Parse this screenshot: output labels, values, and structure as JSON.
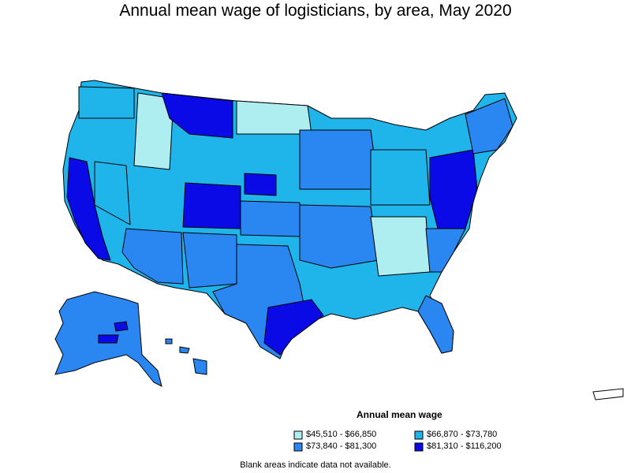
{
  "title": "Annual mean wage of logisticians, by area, May 2020",
  "legend": {
    "title": "Annual mean wage",
    "items": [
      {
        "label": "$45,510 - $66,850",
        "color": "#aeeef0"
      },
      {
        "label": "$66,870 - $73,780",
        "color": "#1fb4ea"
      },
      {
        "label": "$73,840 - $81,300",
        "color": "#2a86f0"
      },
      {
        "label": "$81,310 - $116,200",
        "color": "#0a0ae6"
      }
    ]
  },
  "footnote": "Blank areas indicate data not available.",
  "colors": {
    "blank": "#ffffff",
    "border": "#000000"
  }
}
